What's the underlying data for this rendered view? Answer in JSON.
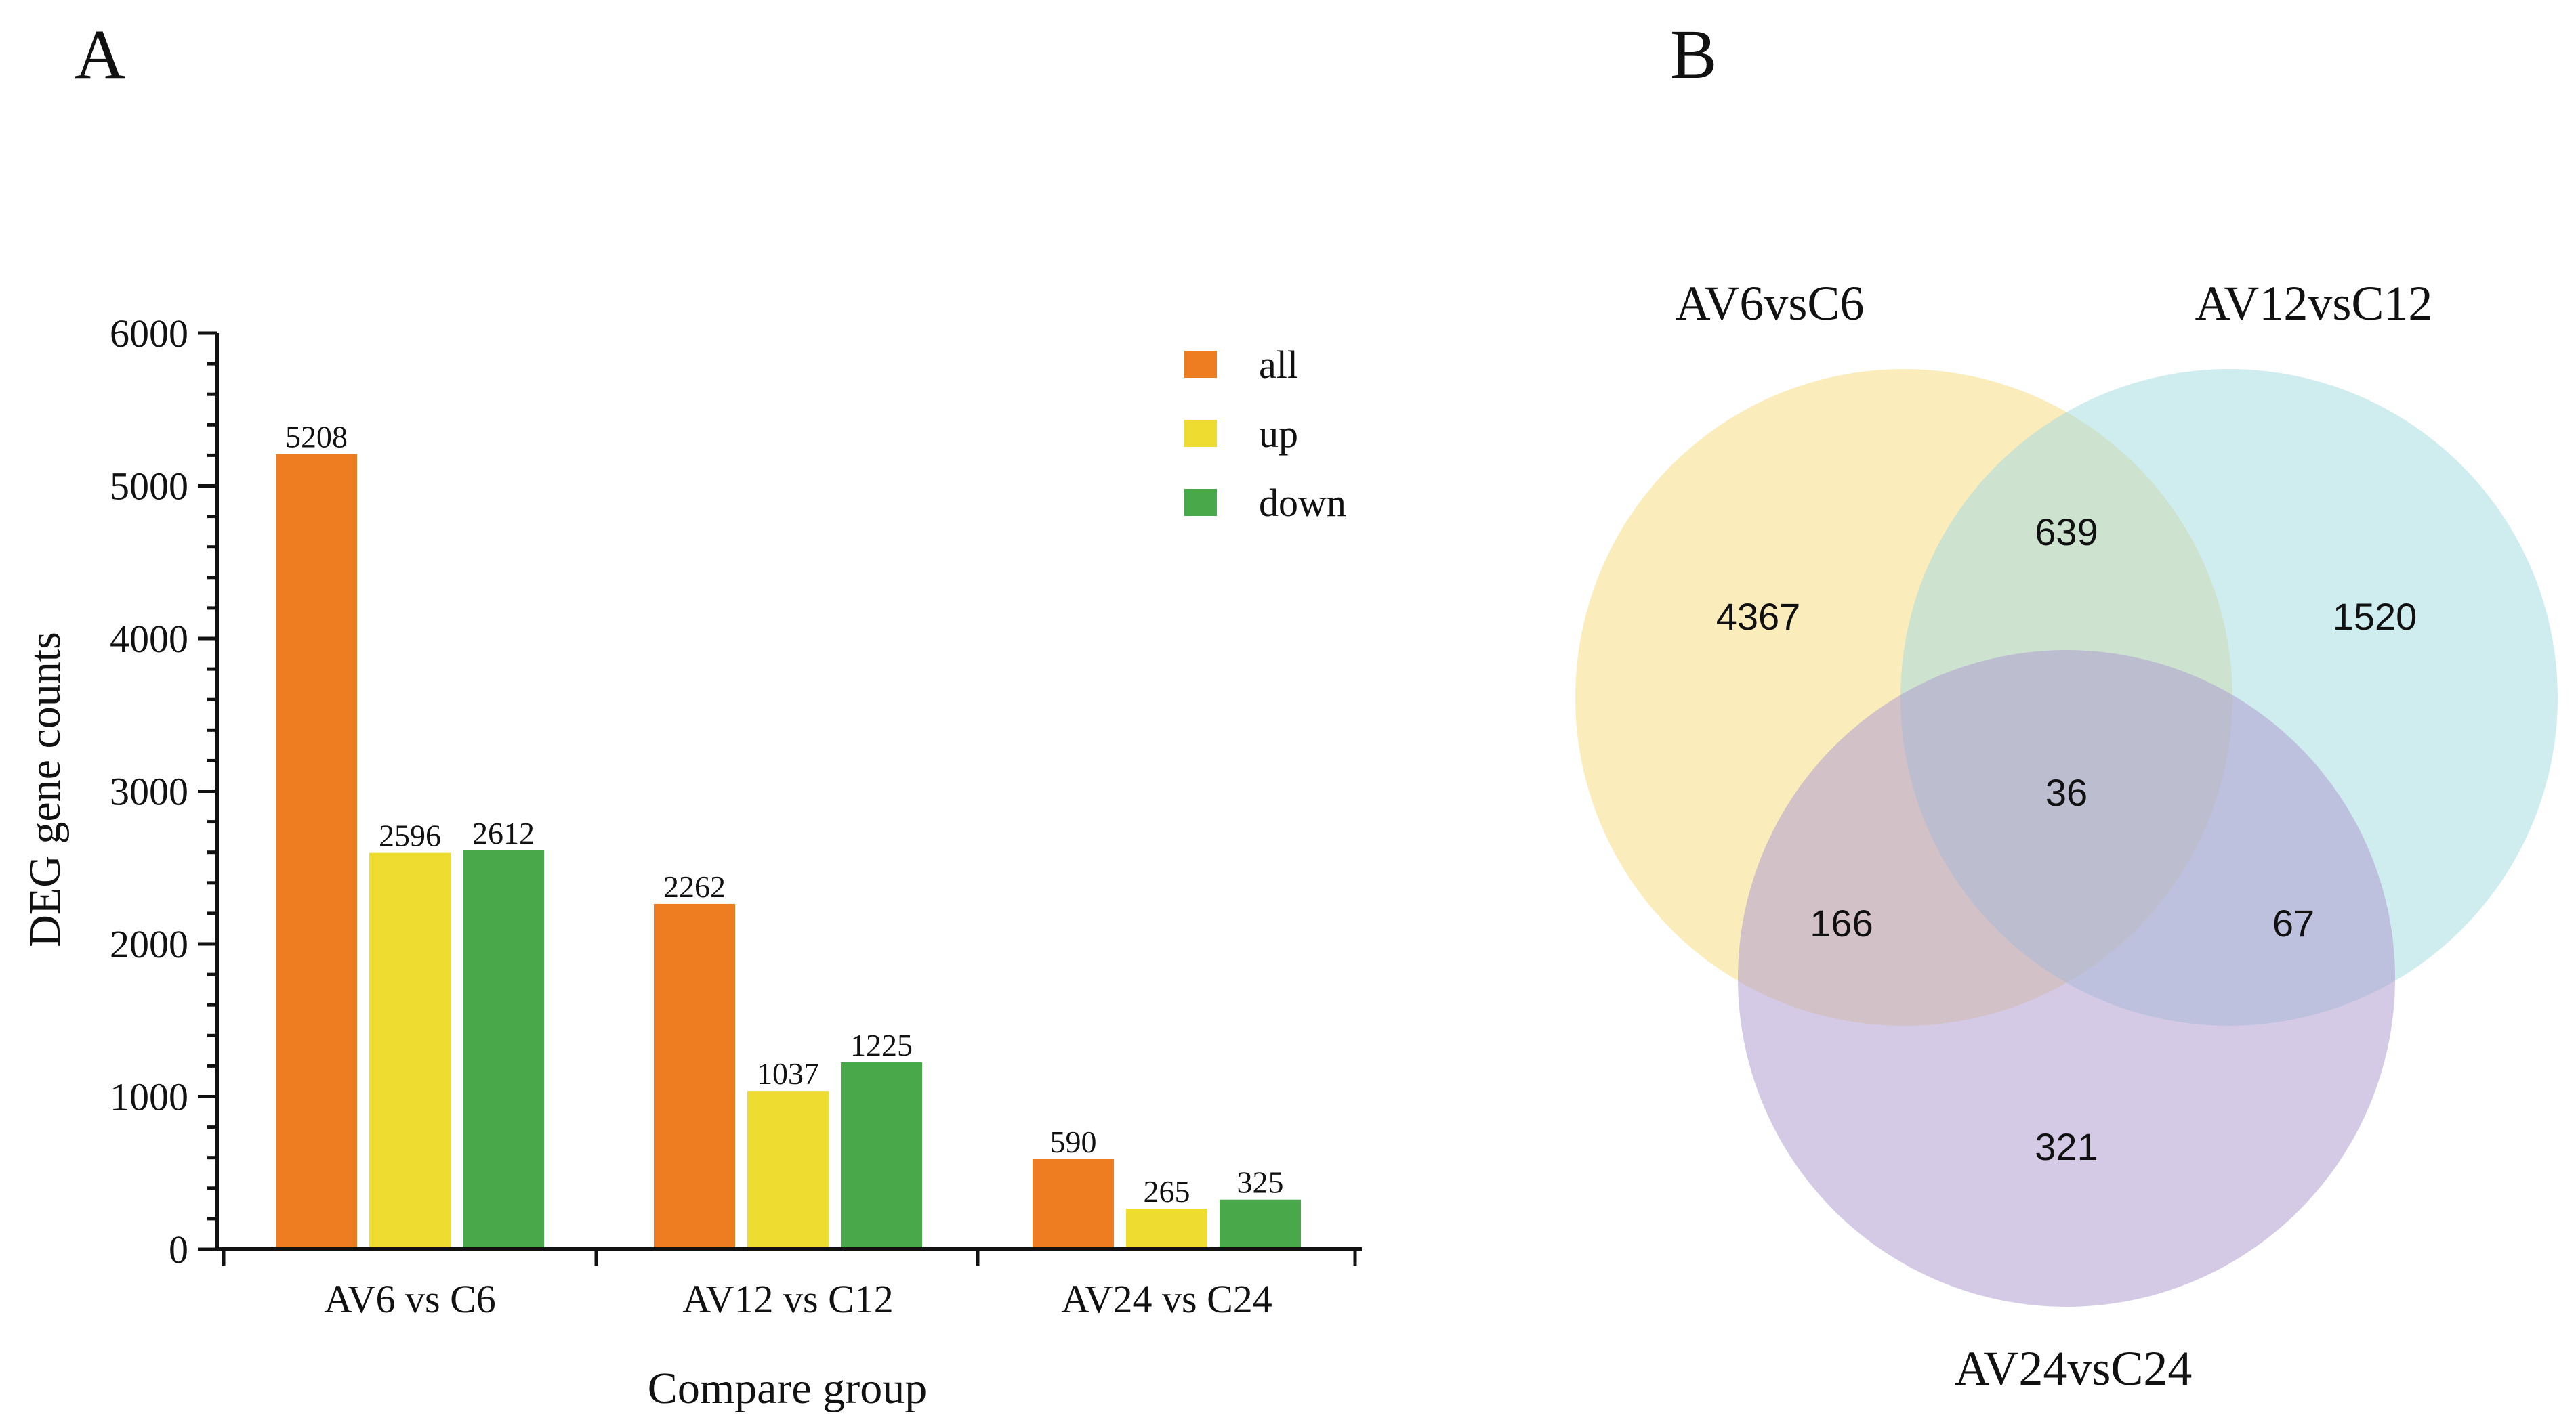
{
  "panels": {
    "a_label": "A",
    "b_label": "B"
  },
  "chart_data": [
    {
      "type": "bar",
      "panel": "A",
      "categories": [
        "AV6 vs C6",
        "AV12 vs C12",
        "AV24 vs C24"
      ],
      "series": [
        {
          "name": "all",
          "color": "#ee7d21",
          "values": [
            5208,
            2262,
            590
          ]
        },
        {
          "name": "up",
          "color": "#eedc30",
          "values": [
            2596,
            1037,
            265
          ]
        },
        {
          "name": "down",
          "color": "#49a84a",
          "values": [
            2612,
            1225,
            325
          ]
        }
      ],
      "title": "",
      "xlabel": "Compare group",
      "ylabel": "DEG gene counts",
      "ylim": [
        0,
        6000
      ],
      "yticks": [
        0,
        1000,
        2000,
        3000,
        4000,
        5000,
        6000
      ],
      "ytick_labels": [
        "0",
        "1000",
        "2000",
        "3000",
        "4000",
        "5000",
        "6000"
      ],
      "minor_ytick_step": 200,
      "legend_position": "top-right",
      "grid": false
    },
    {
      "type": "venn",
      "panel": "B",
      "sets": [
        {
          "name": "AV6vsC6",
          "color": "#f5dc83"
        },
        {
          "name": "AV12vsC12",
          "color": "#a8dce2"
        },
        {
          "name": "AV24vsC24",
          "color": "#b09fd0"
        }
      ],
      "regions": {
        "only_AV6vsC6": "4367",
        "only_AV12vsC12": "1520",
        "only_AV24vsC24": "321",
        "AV6vsC6_and_AV12vsC12": "639",
        "AV6vsC6_and_AV24vsC24": "166",
        "AV12vsC12_and_AV24vsC24": "67",
        "all_three": "36"
      }
    }
  ]
}
